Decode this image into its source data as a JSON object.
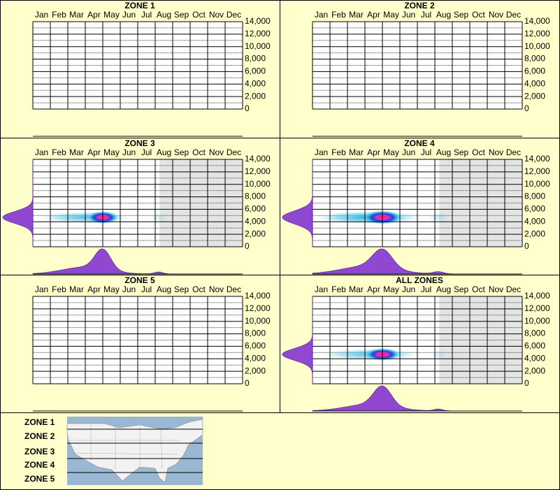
{
  "chart_data": [
    {
      "type": "heatmap",
      "title": "ZONE 1",
      "categories": [
        "Jan",
        "Feb",
        "Mar",
        "Apr",
        "May",
        "Jun",
        "Jul",
        "Aug",
        "Sep",
        "Oct",
        "Nov",
        "Dec"
      ],
      "ylim": [
        0,
        14000
      ],
      "yticks": [
        0,
        {
          "value": 2000,
          "label": "2,000"
        },
        {
          "value": 4000,
          "label": "4,000"
        },
        {
          "value": 6000,
          "label": "6,000"
        },
        {
          "value": 8000,
          "label": "8,000"
        },
        {
          "value": 10000,
          "label": "10,000"
        },
        {
          "value": 12000,
          "label": "12,000"
        },
        {
          "value": 14000,
          "label": "14,000"
        }
      ],
      "hotspots": []
    },
    {
      "type": "heatmap",
      "title": "ZONE 2",
      "categories": [
        "Jan",
        "Feb",
        "Mar",
        "Apr",
        "May",
        "Jun",
        "Jul",
        "Aug",
        "Sep",
        "Oct",
        "Nov",
        "Dec"
      ],
      "ylim": [
        0,
        14000
      ],
      "yticks": [
        0,
        {
          "value": 2000,
          "label": "2,000"
        },
        {
          "value": 4000,
          "label": "4,000"
        },
        {
          "value": 6000,
          "label": "6,000"
        },
        {
          "value": 8000,
          "label": "8,000"
        },
        {
          "value": 10000,
          "label": "10,000"
        },
        {
          "value": 12000,
          "label": "12,000"
        },
        {
          "value": 14000,
          "label": "14,000"
        }
      ],
      "hotspots": []
    },
    {
      "type": "heatmap",
      "title": "ZONE 3",
      "categories": [
        "Jan",
        "Feb",
        "Mar",
        "Apr",
        "May",
        "Jun",
        "Jul",
        "Aug",
        "Sep",
        "Oct",
        "Nov",
        "Dec"
      ],
      "ylim": [
        0,
        14000
      ],
      "yticks": [
        0,
        {
          "value": 2000,
          "label": "2,000"
        },
        {
          "value": 4000,
          "label": "4,000"
        },
        {
          "value": 6000,
          "label": "6,000"
        },
        {
          "value": 8000,
          "label": "8,000"
        },
        {
          "value": 10000,
          "label": "10,000"
        },
        {
          "value": 12000,
          "label": "12,000"
        },
        {
          "value": 14000,
          "label": "14,000"
        }
      ],
      "shaded_months": [
        7.25,
        12
      ],
      "hotspots": [
        {
          "month": 3.0,
          "elevation": 4700,
          "weight": 0.35,
          "month_spread": 1.3,
          "elevation_spread": 450
        },
        {
          "month": 7.2,
          "elevation": 4700,
          "weight": 0.1,
          "month_spread": 0.25,
          "elevation_spread": 400
        },
        {
          "month": 4.0,
          "elevation": 4700,
          "weight": 1,
          "month_spread": 0.45,
          "elevation_spread": 500
        }
      ]
    },
    {
      "type": "heatmap",
      "title": "ZONE 4",
      "categories": [
        "Jan",
        "Feb",
        "Mar",
        "Apr",
        "May",
        "Jun",
        "Jul",
        "Aug",
        "Sep",
        "Oct",
        "Nov",
        "Dec"
      ],
      "ylim": [
        0,
        14000
      ],
      "yticks": [
        0,
        {
          "value": 2000,
          "label": "2,000"
        },
        {
          "value": 4000,
          "label": "4,000"
        },
        {
          "value": 6000,
          "label": "6,000"
        },
        {
          "value": 8000,
          "label": "8,000"
        },
        {
          "value": 10000,
          "label": "10,000"
        },
        {
          "value": 12000,
          "label": "12,000"
        },
        {
          "value": 14000,
          "label": "14,000"
        }
      ],
      "shaded_months": [
        7.25,
        12
      ],
      "hotspots": [
        {
          "month": 3.2,
          "elevation": 4700,
          "weight": 0.45,
          "month_spread": 1.5,
          "elevation_spread": 500
        },
        {
          "month": 7.2,
          "elevation": 4700,
          "weight": 0.12,
          "month_spread": 0.3,
          "elevation_spread": 400
        },
        {
          "month": 4.0,
          "elevation": 4700,
          "weight": 1,
          "month_spread": 0.55,
          "elevation_spread": 550
        }
      ]
    },
    {
      "type": "heatmap",
      "title": "ZONE 5",
      "categories": [
        "Jan",
        "Feb",
        "Mar",
        "Apr",
        "May",
        "Jun",
        "Jul",
        "Aug",
        "Sep",
        "Oct",
        "Nov",
        "Dec"
      ],
      "ylim": [
        0,
        14000
      ],
      "yticks": [
        0,
        {
          "value": 2000,
          "label": "2,000"
        },
        {
          "value": 4000,
          "label": "4,000"
        },
        {
          "value": 6000,
          "label": "6,000"
        },
        {
          "value": 8000,
          "label": "8,000"
        },
        {
          "value": 10000,
          "label": "10,000"
        },
        {
          "value": 12000,
          "label": "12,000"
        },
        {
          "value": 14000,
          "label": "14,000"
        }
      ],
      "hotspots": []
    },
    {
      "type": "heatmap",
      "title": "ALL ZONES",
      "categories": [
        "Jan",
        "Feb",
        "Mar",
        "Apr",
        "May",
        "Jun",
        "Jul",
        "Aug",
        "Sep",
        "Oct",
        "Nov",
        "Dec"
      ],
      "ylim": [
        0,
        14000
      ],
      "yticks": [
        0,
        {
          "value": 2000,
          "label": "2,000"
        },
        {
          "value": 4000,
          "label": "4,000"
        },
        {
          "value": 6000,
          "label": "6,000"
        },
        {
          "value": 8000,
          "label": "8,000"
        },
        {
          "value": 10000,
          "label": "10,000"
        },
        {
          "value": 12000,
          "label": "12,000"
        },
        {
          "value": 14000,
          "label": "14,000"
        }
      ],
      "shaded_months": [
        7.25,
        12
      ],
      "hotspots": [
        {
          "month": 3.3,
          "elevation": 4700,
          "weight": 0.35,
          "month_spread": 1.4,
          "elevation_spread": 450
        },
        {
          "month": 7.2,
          "elevation": 4700,
          "weight": 0.1,
          "month_spread": 0.25,
          "elevation_spread": 400
        },
        {
          "month": 4.0,
          "elevation": 4700,
          "weight": 1,
          "month_spread": 0.5,
          "elevation_spread": 500
        }
      ]
    }
  ],
  "legend": {
    "zones": [
      "ZONE 1",
      "ZONE 2",
      "ZONE 3",
      "ZONE 4",
      "ZONE 5"
    ]
  }
}
